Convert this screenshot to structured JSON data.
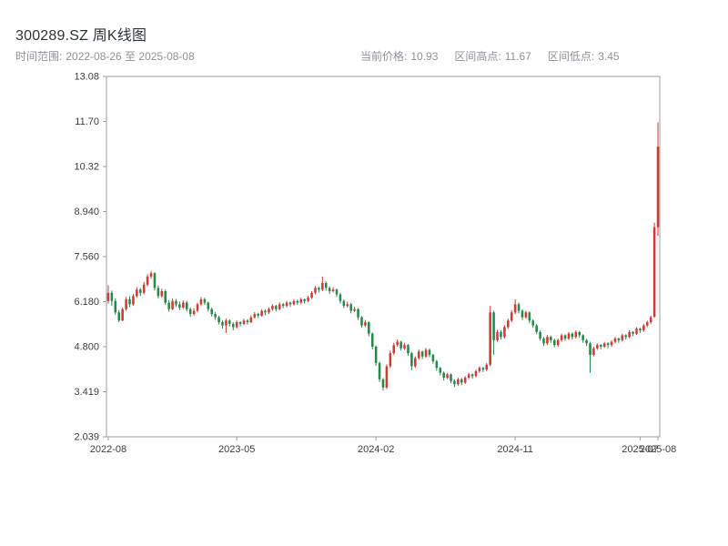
{
  "header": {
    "title": "300289.SZ 周K线图",
    "time_range": {
      "label": "时间范围:",
      "value": "2022-08-26 至 2025-08-08"
    },
    "stats": [
      {
        "label": "当前价格:",
        "value": "10.93"
      },
      {
        "label": "区间高点:",
        "value": "11.67"
      },
      {
        "label": "区间低点:",
        "value": "3.45"
      }
    ]
  },
  "chart_data": {
    "type": "candlestick",
    "symbol": "300289.SZ",
    "interval": "weekly",
    "title": "300289.SZ 周K线图",
    "ylim": [
      2.039,
      13.08
    ],
    "y_ticks": [
      {
        "value": 13.08,
        "label": "13.08"
      },
      {
        "value": 11.7,
        "label": "11.70"
      },
      {
        "value": 10.32,
        "label": "10.32"
      },
      {
        "value": 8.94,
        "label": "8.940"
      },
      {
        "value": 7.56,
        "label": "7.560"
      },
      {
        "value": 6.18,
        "label": "6.180"
      },
      {
        "value": 4.8,
        "label": "4.800"
      },
      {
        "value": 3.419,
        "label": "3.419"
      },
      {
        "value": 2.039,
        "label": "2.039"
      }
    ],
    "x_ticks": [
      {
        "index": 0,
        "label": "2022-08"
      },
      {
        "index": 36,
        "label": "2023-05"
      },
      {
        "index": 75,
        "label": "2024-02"
      },
      {
        "index": 114,
        "label": "2024-11"
      },
      {
        "index": 149,
        "label": "2025-07"
      },
      {
        "index": 154,
        "label": "2025-08"
      }
    ],
    "ohlc_format": [
      "open",
      "high",
      "low",
      "close"
    ],
    "candles": [
      [
        6.2,
        6.68,
        6.12,
        6.45
      ],
      [
        6.45,
        6.52,
        6.05,
        6.2
      ],
      [
        6.2,
        6.28,
        5.78,
        5.85
      ],
      [
        5.85,
        5.92,
        5.55,
        5.6
      ],
      [
        5.6,
        6.0,
        5.58,
        5.95
      ],
      [
        5.95,
        6.32,
        5.9,
        6.25
      ],
      [
        6.25,
        6.35,
        6.02,
        6.1
      ],
      [
        6.1,
        6.42,
        6.05,
        6.35
      ],
      [
        6.35,
        6.62,
        6.3,
        6.55
      ],
      [
        6.55,
        6.6,
        6.35,
        6.45
      ],
      [
        6.45,
        6.78,
        6.4,
        6.7
      ],
      [
        6.7,
        7.02,
        6.65,
        6.95
      ],
      [
        6.95,
        7.12,
        6.88,
        7.05
      ],
      [
        7.05,
        7.08,
        6.52,
        6.6
      ],
      [
        6.6,
        6.68,
        6.28,
        6.35
      ],
      [
        6.35,
        6.58,
        6.3,
        6.5
      ],
      [
        6.5,
        6.55,
        6.08,
        6.15
      ],
      [
        6.15,
        6.22,
        5.88,
        5.95
      ],
      [
        5.95,
        6.28,
        5.92,
        6.2
      ],
      [
        6.2,
        6.26,
        6.02,
        6.1
      ],
      [
        6.1,
        6.18,
        5.92,
        6.0
      ],
      [
        6.0,
        6.22,
        5.96,
        6.15
      ],
      [
        6.15,
        6.2,
        5.88,
        5.95
      ],
      [
        5.95,
        6.0,
        5.72,
        5.8
      ],
      [
        5.8,
        5.98,
        5.75,
        5.9
      ],
      [
        5.9,
        6.15,
        5.86,
        6.1
      ],
      [
        6.1,
        6.32,
        6.05,
        6.25
      ],
      [
        6.25,
        6.3,
        6.08,
        6.15
      ],
      [
        6.15,
        6.18,
        5.88,
        5.95
      ],
      [
        5.95,
        6.0,
        5.72,
        5.8
      ],
      [
        5.8,
        5.86,
        5.62,
        5.7
      ],
      [
        5.7,
        5.75,
        5.48,
        5.55
      ],
      [
        5.55,
        5.6,
        5.36,
        5.45
      ],
      [
        5.45,
        5.66,
        5.22,
        5.6
      ],
      [
        5.6,
        5.64,
        5.42,
        5.5
      ],
      [
        5.5,
        5.55,
        5.3,
        5.4
      ],
      [
        5.4,
        5.6,
        5.36,
        5.55
      ],
      [
        5.55,
        5.58,
        5.42,
        5.5
      ],
      [
        5.5,
        5.66,
        5.46,
        5.6
      ],
      [
        5.6,
        5.64,
        5.48,
        5.55
      ],
      [
        5.55,
        5.76,
        5.52,
        5.7
      ],
      [
        5.7,
        5.86,
        5.66,
        5.8
      ],
      [
        5.8,
        5.84,
        5.68,
        5.75
      ],
      [
        5.75,
        5.95,
        5.72,
        5.9
      ],
      [
        5.9,
        5.94,
        5.76,
        5.85
      ],
      [
        5.85,
        6.0,
        5.8,
        5.95
      ],
      [
        5.95,
        6.1,
        5.9,
        6.05
      ],
      [
        6.05,
        6.08,
        5.88,
        5.95
      ],
      [
        5.95,
        6.16,
        5.92,
        6.1
      ],
      [
        6.1,
        6.14,
        5.98,
        6.05
      ],
      [
        6.05,
        6.2,
        6.0,
        6.15
      ],
      [
        6.15,
        6.18,
        6.02,
        6.1
      ],
      [
        6.1,
        6.26,
        6.06,
        6.2
      ],
      [
        6.2,
        6.24,
        6.08,
        6.15
      ],
      [
        6.15,
        6.3,
        6.1,
        6.25
      ],
      [
        6.25,
        6.28,
        6.12,
        6.2
      ],
      [
        6.2,
        6.36,
        6.16,
        6.3
      ],
      [
        6.3,
        6.5,
        6.26,
        6.45
      ],
      [
        6.45,
        6.66,
        6.4,
        6.6
      ],
      [
        6.6,
        6.64,
        6.46,
        6.55
      ],
      [
        6.55,
        6.95,
        6.5,
        6.75
      ],
      [
        6.75,
        6.8,
        6.52,
        6.6
      ],
      [
        6.6,
        6.65,
        6.42,
        6.5
      ],
      [
        6.5,
        6.62,
        6.46,
        6.55
      ],
      [
        6.55,
        6.58,
        6.32,
        6.4
      ],
      [
        6.4,
        6.45,
        6.12,
        6.2
      ],
      [
        6.2,
        6.25,
        5.98,
        6.05
      ],
      [
        6.05,
        6.18,
        6.0,
        6.1
      ],
      [
        6.1,
        6.14,
        5.82,
        5.9
      ],
      [
        5.9,
        6.02,
        5.86,
        5.95
      ],
      [
        5.95,
        5.98,
        5.62,
        5.7
      ],
      [
        5.7,
        5.74,
        5.38,
        5.45
      ],
      [
        5.45,
        5.62,
        5.4,
        5.55
      ],
      [
        5.55,
        5.58,
        5.12,
        5.2
      ],
      [
        5.2,
        5.24,
        4.72,
        4.8
      ],
      [
        4.8,
        4.84,
        4.22,
        4.3
      ],
      [
        4.3,
        4.34,
        3.72,
        3.8
      ],
      [
        3.8,
        3.84,
        3.45,
        3.55
      ],
      [
        3.55,
        4.26,
        3.5,
        4.2
      ],
      [
        4.2,
        4.68,
        4.15,
        4.6
      ],
      [
        4.6,
        4.92,
        4.55,
        4.85
      ],
      [
        4.85,
        5.02,
        4.8,
        4.95
      ],
      [
        4.95,
        4.98,
        4.68,
        4.75
      ],
      [
        4.75,
        4.92,
        4.7,
        4.85
      ],
      [
        4.85,
        4.88,
        4.52,
        4.6
      ],
      [
        4.6,
        4.64,
        4.08,
        4.2
      ],
      [
        4.2,
        4.5,
        4.15,
        4.45
      ],
      [
        4.45,
        4.72,
        4.4,
        4.65
      ],
      [
        4.65,
        4.68,
        4.42,
        4.5
      ],
      [
        4.5,
        4.76,
        4.46,
        4.7
      ],
      [
        4.7,
        4.74,
        4.48,
        4.55
      ],
      [
        4.55,
        4.58,
        4.28,
        4.35
      ],
      [
        4.35,
        4.4,
        4.06,
        4.15
      ],
      [
        4.15,
        4.18,
        3.92,
        4.0
      ],
      [
        4.0,
        4.04,
        3.76,
        3.85
      ],
      [
        3.85,
        4.0,
        3.8,
        3.95
      ],
      [
        3.95,
        3.98,
        3.68,
        3.75
      ],
      [
        3.75,
        3.8,
        3.56,
        3.65
      ],
      [
        3.65,
        3.85,
        3.6,
        3.8
      ],
      [
        3.8,
        3.84,
        3.62,
        3.7
      ],
      [
        3.7,
        3.9,
        3.66,
        3.85
      ],
      [
        3.85,
        4.0,
        3.8,
        3.95
      ],
      [
        3.95,
        3.98,
        3.82,
        3.9
      ],
      [
        3.9,
        4.1,
        3.86,
        4.05
      ],
      [
        4.05,
        4.2,
        4.0,
        4.15
      ],
      [
        4.15,
        4.18,
        4.02,
        4.1
      ],
      [
        4.1,
        4.3,
        4.05,
        4.25
      ],
      [
        4.25,
        6.05,
        4.2,
        5.85
      ],
      [
        5.85,
        5.9,
        4.55,
        5.0
      ],
      [
        5.0,
        5.32,
        4.95,
        5.25
      ],
      [
        5.25,
        5.3,
        5.02,
        5.1
      ],
      [
        5.1,
        5.46,
        5.05,
        5.4
      ],
      [
        5.4,
        5.66,
        5.35,
        5.6
      ],
      [
        5.6,
        5.92,
        5.55,
        5.85
      ],
      [
        5.85,
        6.25,
        5.8,
        6.1
      ],
      [
        6.1,
        6.15,
        5.82,
        5.9
      ],
      [
        5.9,
        5.95,
        5.62,
        5.7
      ],
      [
        5.7,
        5.9,
        5.65,
        5.85
      ],
      [
        5.85,
        5.88,
        5.52,
        5.6
      ],
      [
        5.6,
        5.64,
        5.38,
        5.45
      ],
      [
        5.45,
        5.5,
        5.18,
        5.25
      ],
      [
        5.25,
        5.3,
        4.98,
        5.05
      ],
      [
        5.05,
        5.1,
        4.82,
        4.9
      ],
      [
        4.9,
        5.16,
        4.85,
        5.1
      ],
      [
        5.1,
        5.14,
        4.92,
        5.0
      ],
      [
        5.0,
        5.05,
        4.78,
        4.85
      ],
      [
        4.85,
        5.05,
        4.8,
        5.0
      ],
      [
        5.0,
        5.2,
        4.95,
        5.15
      ],
      [
        5.15,
        5.18,
        4.98,
        5.05
      ],
      [
        5.05,
        5.25,
        5.0,
        5.2
      ],
      [
        5.2,
        5.24,
        5.02,
        5.1
      ],
      [
        5.1,
        5.3,
        5.05,
        5.25
      ],
      [
        5.25,
        5.28,
        5.08,
        5.15
      ],
      [
        5.15,
        5.18,
        4.92,
        5.0
      ],
      [
        5.0,
        5.04,
        4.82,
        4.9
      ],
      [
        4.9,
        4.95,
        4.0,
        4.55
      ],
      [
        4.55,
        4.8,
        4.5,
        4.75
      ],
      [
        4.75,
        4.9,
        4.7,
        4.85
      ],
      [
        4.85,
        4.88,
        4.72,
        4.8
      ],
      [
        4.8,
        4.95,
        4.76,
        4.9
      ],
      [
        4.9,
        4.94,
        4.76,
        4.85
      ],
      [
        4.85,
        5.0,
        4.8,
        4.95
      ],
      [
        4.95,
        5.1,
        4.9,
        5.05
      ],
      [
        5.05,
        5.08,
        4.92,
        5.0
      ],
      [
        5.0,
        5.2,
        4.96,
        5.15
      ],
      [
        5.15,
        5.18,
        5.02,
        5.1
      ],
      [
        5.1,
        5.3,
        5.06,
        5.25
      ],
      [
        5.25,
        5.28,
        5.12,
        5.2
      ],
      [
        5.2,
        5.4,
        5.16,
        5.35
      ],
      [
        5.35,
        5.38,
        5.22,
        5.3
      ],
      [
        5.3,
        5.5,
        5.26,
        5.45
      ],
      [
        5.45,
        5.6,
        5.4,
        5.55
      ],
      [
        5.55,
        5.75,
        5.5,
        5.7
      ],
      [
        5.72,
        8.6,
        5.68,
        8.46
      ],
      [
        8.46,
        11.67,
        8.2,
        10.93
      ]
    ],
    "colors": {
      "up": "#cf3a32",
      "down": "#27874d",
      "axis": "#9aa0a6",
      "tick_text": "#3a3f44",
      "background": "#ffffff"
    }
  }
}
